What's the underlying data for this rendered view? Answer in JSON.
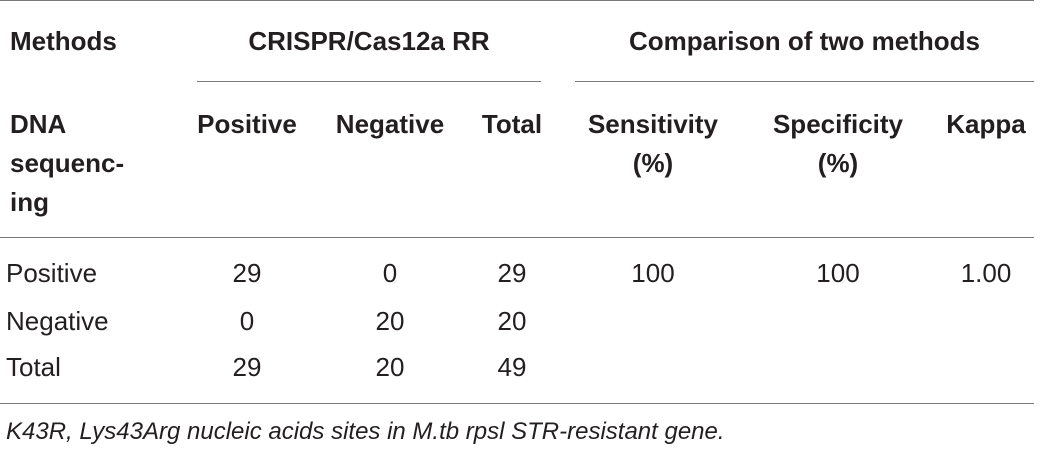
{
  "header": {
    "row1": {
      "methods": "Methods",
      "crispr_group": "CRISPR/Cas12a RR",
      "comparison_group": "Comparison of two methods"
    },
    "row2": {
      "dna_sequencing": [
        "DNA",
        "sequenc-",
        "ing"
      ],
      "positive": "Positive",
      "negative": "Negative",
      "total": "Total",
      "sensitivity": [
        "Sensitivity",
        "(%)"
      ],
      "specificity": [
        "Specificity",
        "(%)"
      ],
      "kappa": "Kappa"
    }
  },
  "rows": [
    {
      "label": "Positive",
      "positive": "29",
      "negative": "0",
      "total": "29",
      "sensitivity": "100",
      "specificity": "100",
      "kappa": "1.00"
    },
    {
      "label": "Negative",
      "positive": "0",
      "negative": "20",
      "total": "20",
      "sensitivity": "",
      "specificity": "",
      "kappa": ""
    },
    {
      "label": "Total",
      "positive": "29",
      "negative": "20",
      "total": "49",
      "sensitivity": "",
      "specificity": "",
      "kappa": ""
    }
  ],
  "footnote": "K43R, Lys43Arg nucleic acids sites in M.tb rpsl STR-resistant gene."
}
